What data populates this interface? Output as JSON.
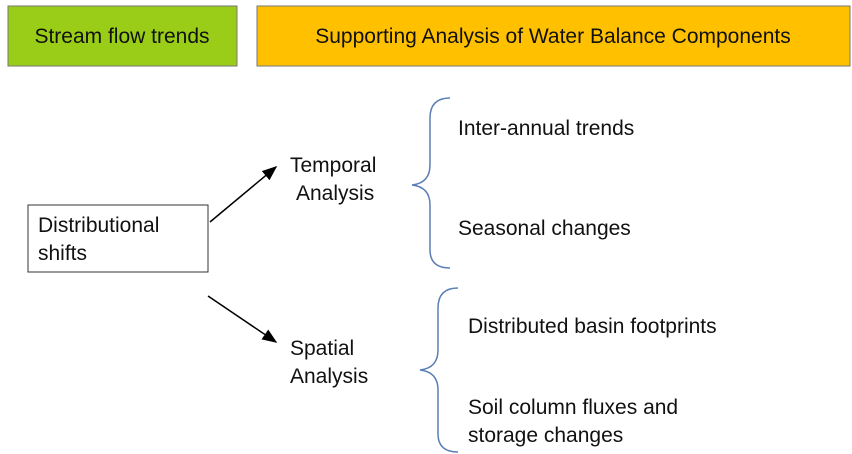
{
  "header": {
    "left": "Stream flow trends",
    "right": "Supporting Analysis of Water Balance Components"
  },
  "nodes": [
    {
      "label": [
        "Distributional",
        "shifts"
      ]
    },
    {
      "label": [
        "Temporal",
        "Analysis"
      ],
      "items": [
        [
          "Inter-annual trends"
        ],
        [
          "Seasonal changes"
        ]
      ]
    },
    {
      "label": [
        "Spatial",
        "Analysis"
      ],
      "items": [
        [
          "Distributed basin footprints"
        ],
        [
          "Soil column fluxes and",
          "storage changes"
        ]
      ]
    }
  ]
}
